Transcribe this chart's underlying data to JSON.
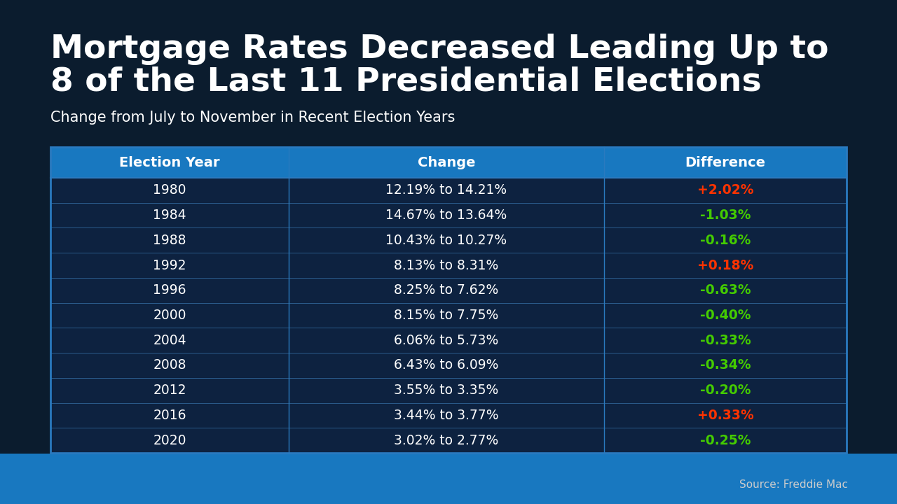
{
  "title_line1": "Mortgage Rates Decreased Leading Up to",
  "title_line2": "8 of the Last 11 Presidential Elections",
  "subtitle": "Change from July to November in Recent Election Years",
  "source": "Source: Freddie Mac",
  "headers": [
    "Election Year",
    "Change",
    "Difference"
  ],
  "rows": [
    {
      "year": "1980",
      "change": "12.19% to 14.21%",
      "diff": "+2.02%",
      "diff_color": "#ff3300"
    },
    {
      "year": "1984",
      "change": "14.67% to 13.64%",
      "diff": "-1.03%",
      "diff_color": "#44cc00"
    },
    {
      "year": "1988",
      "change": "10.43% to 10.27%",
      "diff": "-0.16%",
      "diff_color": "#44cc00"
    },
    {
      "year": "1992",
      "change": "8.13% to 8.31%",
      "diff": "+0.18%",
      "diff_color": "#ff3300"
    },
    {
      "year": "1996",
      "change": "8.25% to 7.62%",
      "diff": "-0.63%",
      "diff_color": "#44cc00"
    },
    {
      "year": "2000",
      "change": "8.15% to 7.75%",
      "diff": "-0.40%",
      "diff_color": "#44cc00"
    },
    {
      "year": "2004",
      "change": "6.06% to 5.73%",
      "diff": "-0.33%",
      "diff_color": "#44cc00"
    },
    {
      "year": "2008",
      "change": "6.43% to 6.09%",
      "diff": "-0.34%",
      "diff_color": "#44cc00"
    },
    {
      "year": "2012",
      "change": "3.55% to 3.35%",
      "diff": "-0.20%",
      "diff_color": "#44cc00"
    },
    {
      "year": "2016",
      "change": "3.44% to 3.77%",
      "diff": "+0.33%",
      "diff_color": "#ff3300"
    },
    {
      "year": "2020",
      "change": "3.02% to 2.77%",
      "diff": "-0.25%",
      "diff_color": "#44cc00"
    }
  ],
  "bg_color": "#0b1c2e",
  "header_bg": "#1878c0",
  "table_bg": "#0d2240",
  "row_border_color": "#2a5a8a",
  "table_border_color": "#2a7abf",
  "header_text_color": "#ffffff",
  "row_text_color": "#ffffff",
  "title_color": "#ffffff",
  "subtitle_color": "#ffffff",
  "source_color": "#cccccc",
  "bottom_bar_color_top": "#1878c0",
  "bottom_bar_color_bot": "#1060a0",
  "title_fontsize": 34,
  "subtitle_fontsize": 15,
  "header_fontsize": 14,
  "row_fontsize": 13.5
}
